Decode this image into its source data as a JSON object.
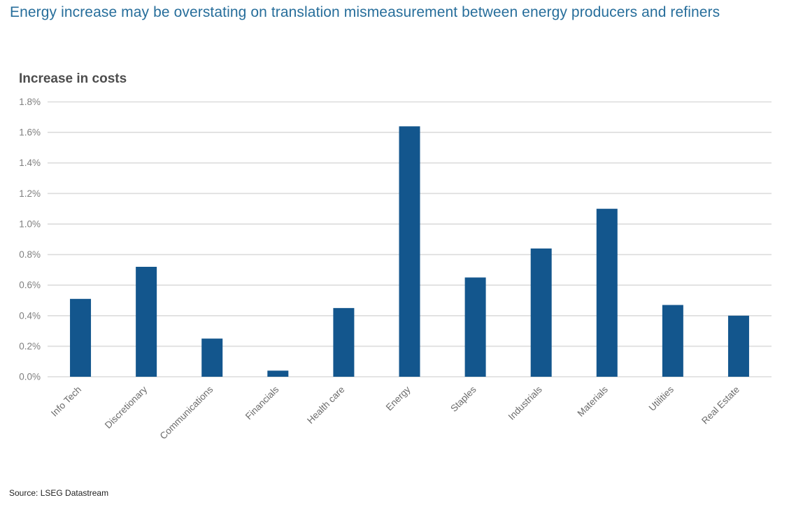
{
  "header": {
    "title": "Energy increase may be overstating on translation mismeasurement between energy producers and refiners"
  },
  "chart_data": {
    "type": "bar",
    "title": "Increase in costs",
    "categories": [
      "Info Tech",
      "Discretionary",
      "Communications",
      "Financials",
      "Health care",
      "Energy",
      "Staples",
      "Industrials",
      "Materials",
      "Utilities",
      "Real Estate"
    ],
    "values": [
      0.51,
      0.72,
      0.25,
      0.04,
      0.45,
      1.64,
      0.65,
      0.84,
      1.1,
      0.47,
      0.4
    ],
    "unit": "%",
    "xlabel": "",
    "ylabel": "",
    "ylim": [
      0,
      1.8
    ],
    "ytick_step": 0.2,
    "ytick_labels": [
      "0.0%",
      "0.2%",
      "0.4%",
      "0.6%",
      "0.8%",
      "1.0%",
      "1.2%",
      "1.4%",
      "1.6%",
      "1.8%"
    ],
    "grid": true,
    "legend_position": "none",
    "x_label_rotation_deg": -45
  },
  "footer": {
    "source": "Source: LSEG Datastream"
  },
  "colors": {
    "background": "#FFFFFF",
    "header_text": "#276E9B",
    "chart_title_text": "#4D4D4D",
    "bar": "#13568D",
    "gridline": "#DCDCDC",
    "y_tick_text": "#7F7F7F",
    "x_tick_text": "#6B6B6B",
    "source_text": "#1F1F1F"
  }
}
